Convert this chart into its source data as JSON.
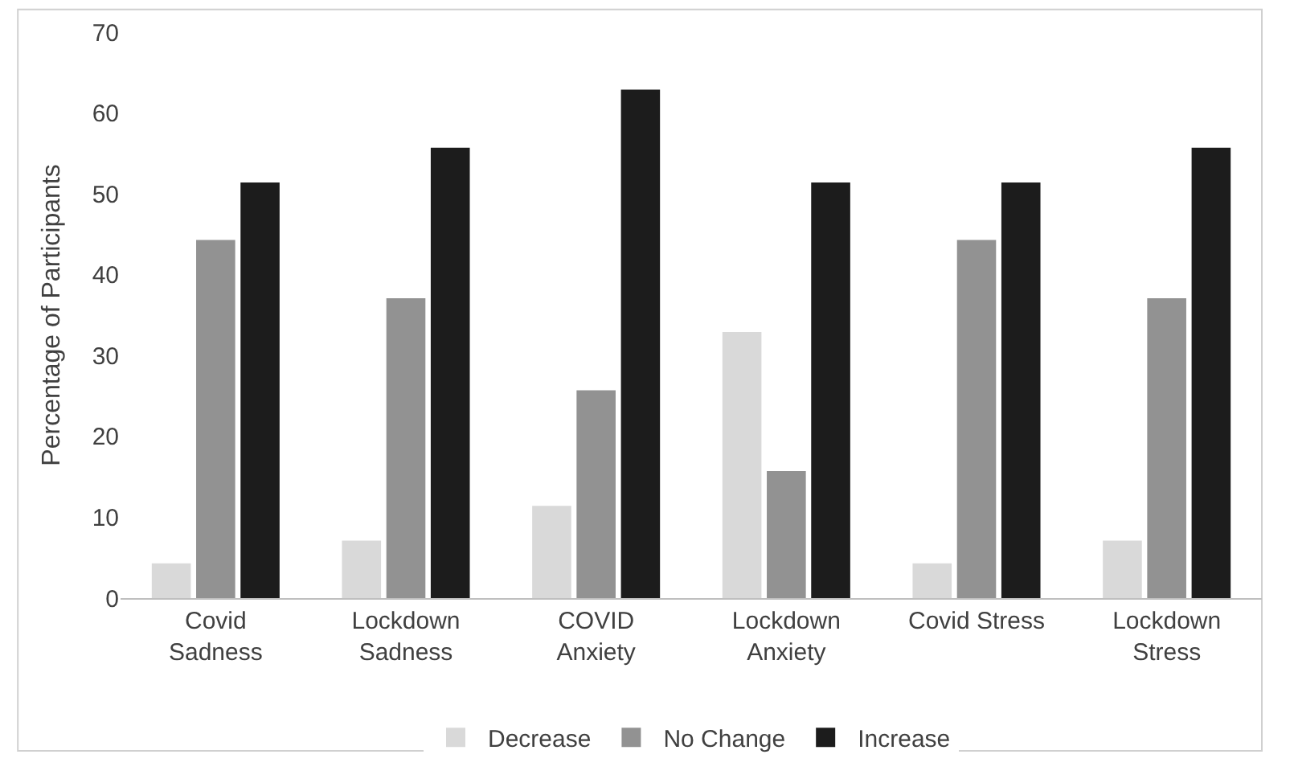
{
  "chart_data": {
    "type": "bar",
    "ylabel": "Percentage of Participants",
    "categories": [
      "Covid Sadness",
      "Lockdown Sadness",
      "COVID Anxiety",
      "Lockdown Anxiety",
      "Covid Stress",
      "Lockdown Stress"
    ],
    "series": [
      {
        "name": "Decrease",
        "color": "#d9d9d9",
        "values": [
          4.3,
          7.1,
          11.4,
          32.9,
          4.3,
          7.1
        ]
      },
      {
        "name": "No Change",
        "color": "#929292",
        "values": [
          44.3,
          37.1,
          25.7,
          15.7,
          44.3,
          37.1
        ]
      },
      {
        "name": "Increase",
        "color": "#1c1c1c",
        "values": [
          51.4,
          55.7,
          62.9,
          51.4,
          51.4,
          55.7
        ]
      }
    ],
    "ylim": [
      0,
      70
    ],
    "yticks": [
      0,
      10,
      20,
      30,
      40,
      50,
      60,
      70
    ],
    "grid": false,
    "legend": "bottom"
  }
}
